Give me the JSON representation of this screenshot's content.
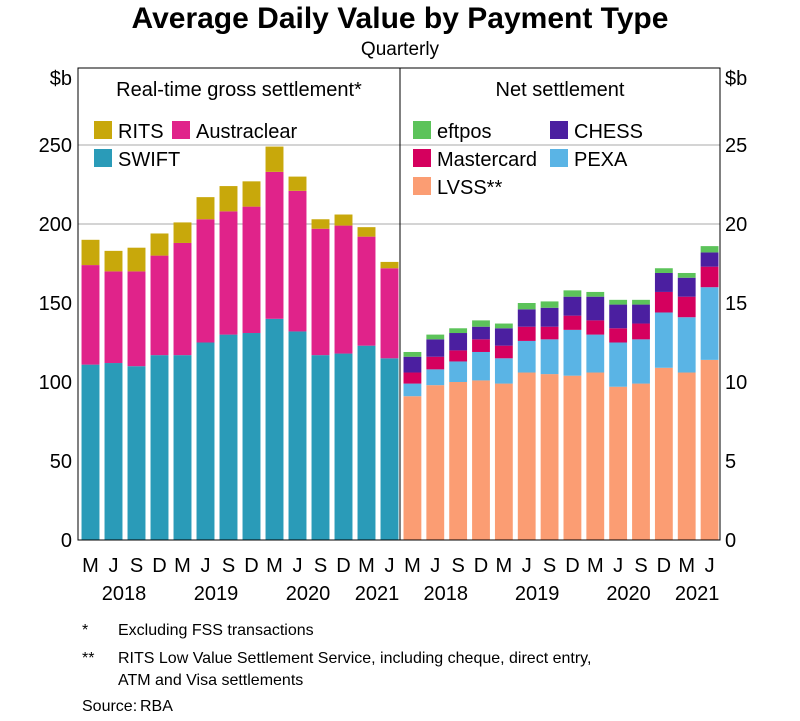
{
  "chart_data": [
    {
      "type": "bar",
      "stacked": true,
      "title": "Average Daily Value by Payment Type",
      "subtitle": "Quarterly",
      "panel_title": "Real-time gross settlement*",
      "ylabel": "$b",
      "ylim": [
        0,
        250
      ],
      "yticks": [
        0,
        50,
        100,
        150,
        200,
        250
      ],
      "categories": [
        "M",
        "J",
        "S",
        "D",
        "M",
        "J",
        "S",
        "D",
        "M",
        "J",
        "S",
        "D",
        "M",
        "J"
      ],
      "years": [
        "2018",
        "2019",
        "2020",
        "2021"
      ],
      "series": [
        {
          "name": "SWIFT",
          "color": "#2a9bb8",
          "values": [
            111,
            112,
            110,
            117,
            117,
            125,
            130,
            131,
            140,
            132,
            117,
            118,
            123,
            115
          ]
        },
        {
          "name": "Austraclear",
          "color": "#e0238a",
          "values": [
            63,
            58,
            60,
            63,
            71,
            78,
            78,
            80,
            93,
            89,
            80,
            81,
            69,
            57
          ]
        },
        {
          "name": "RITS",
          "color": "#c8a80b",
          "values": [
            16,
            13,
            15,
            14,
            13,
            14,
            16,
            16,
            16,
            9,
            6,
            7,
            6,
            4
          ]
        }
      ],
      "legend": [
        "RITS",
        "Austraclear",
        "SWIFT"
      ]
    },
    {
      "type": "bar",
      "stacked": true,
      "panel_title": "Net settlement",
      "ylabel": "$b",
      "ylim": [
        0,
        25
      ],
      "yticks": [
        0,
        5,
        10,
        15,
        20,
        25
      ],
      "categories": [
        "M",
        "J",
        "S",
        "D",
        "M",
        "J",
        "S",
        "D",
        "M",
        "J",
        "S",
        "D",
        "M",
        "J"
      ],
      "years": [
        "2018",
        "2019",
        "2020",
        "2021"
      ],
      "series": [
        {
          "name": "LVSS**",
          "color": "#fb9d73",
          "values": [
            9.1,
            9.8,
            10.0,
            10.1,
            9.9,
            10.6,
            10.5,
            10.4,
            10.6,
            9.7,
            9.9,
            10.9,
            10.6,
            11.4
          ]
        },
        {
          "name": "PEXA",
          "color": "#5ab4e5",
          "values": [
            0.8,
            1.0,
            1.3,
            1.8,
            1.6,
            2.0,
            2.2,
            2.9,
            2.4,
            2.8,
            2.8,
            3.5,
            3.5,
            4.6
          ]
        },
        {
          "name": "Mastercard",
          "color": "#d5005e",
          "values": [
            0.7,
            0.8,
            0.7,
            0.8,
            0.8,
            0.9,
            0.8,
            0.9,
            0.9,
            0.9,
            1.0,
            1.3,
            1.3,
            1.3
          ]
        },
        {
          "name": "CHESS",
          "color": "#4b1fa0",
          "values": [
            1.0,
            1.1,
            1.1,
            0.8,
            1.1,
            1.1,
            1.2,
            1.2,
            1.5,
            1.5,
            1.2,
            1.2,
            1.2,
            0.9
          ]
        },
        {
          "name": "eftpos",
          "color": "#5cc35a",
          "values": [
            0.3,
            0.3,
            0.3,
            0.4,
            0.3,
            0.4,
            0.4,
            0.4,
            0.3,
            0.3,
            0.3,
            0.3,
            0.3,
            0.4
          ]
        }
      ],
      "legend": [
        "eftpos",
        "CHESS",
        "Mastercard",
        "PEXA",
        "LVSS**"
      ]
    }
  ],
  "footnotes": [
    {
      "mark": "*",
      "text": "Excluding FSS transactions"
    },
    {
      "mark": "**",
      "text": "RITS Low Value Settlement Service, including cheque, direct entry,",
      "text2": "ATM and Visa settlements"
    }
  ],
  "source": {
    "label": "Source:",
    "text": "RBA"
  }
}
